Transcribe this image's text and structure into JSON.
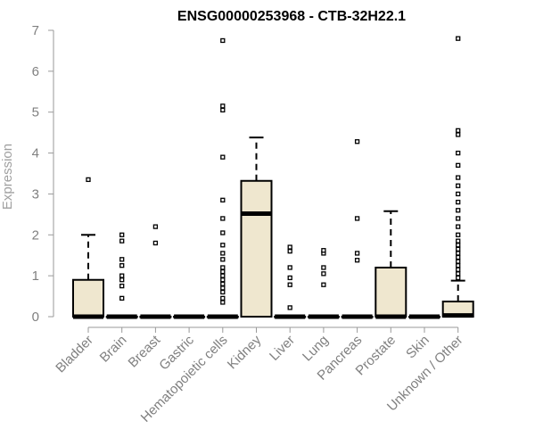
{
  "chart_data": {
    "type": "box",
    "title": "ENSG00000253968 - CTB-32H22.1",
    "xlabel": "",
    "ylabel": "Expression",
    "ylim": [
      0,
      7
    ],
    "yticks": [
      0,
      1,
      2,
      3,
      4,
      5,
      6,
      7
    ],
    "box_fill": "#efe7cf",
    "categories": [
      "Bladder",
      "Brain",
      "Breast",
      "Gastric",
      "Hematopoietic cells",
      "Kidney",
      "Liver",
      "Lung",
      "Pancreas",
      "Prostate",
      "Skin",
      "Unknown / Other"
    ],
    "boxes": [
      {
        "category": "Bladder",
        "q1": 0,
        "median": 0,
        "q3": 0.9,
        "whisker_low": 0,
        "whisker_high": 2.0,
        "outliers": [
          3.35
        ]
      },
      {
        "category": "Brain",
        "q1": 0,
        "median": 0,
        "q3": 0,
        "whisker_low": 0,
        "whisker_high": 0,
        "outliers": [
          0.45,
          0.75,
          0.9,
          1.0,
          1.25,
          1.4,
          1.85,
          2.0
        ]
      },
      {
        "category": "Breast",
        "q1": 0,
        "median": 0,
        "q3": 0,
        "whisker_low": 0,
        "whisker_high": 0,
        "outliers": [
          1.8,
          2.2
        ]
      },
      {
        "category": "Gastric",
        "q1": 0,
        "median": 0,
        "q3": 0,
        "whisker_low": 0,
        "whisker_high": 0,
        "outliers": []
      },
      {
        "category": "Hematopoietic cells",
        "q1": 0,
        "median": 0,
        "q3": 0,
        "whisker_low": 0,
        "whisker_high": 0,
        "outliers": [
          0.35,
          0.45,
          0.6,
          0.7,
          0.8,
          0.9,
          1.0,
          1.1,
          1.2,
          1.4,
          1.55,
          1.75,
          2.05,
          2.4,
          2.85,
          3.9,
          5.05,
          5.15,
          6.75
        ]
      },
      {
        "category": "Kidney",
        "q1": 0,
        "median": 2.52,
        "q3": 3.32,
        "whisker_low": 0,
        "whisker_high": 4.38,
        "outliers": []
      },
      {
        "category": "Liver",
        "q1": 0,
        "median": 0,
        "q3": 0,
        "whisker_low": 0,
        "whisker_high": 0,
        "outliers": [
          0.22,
          0.78,
          0.95,
          1.2,
          1.6,
          1.7
        ]
      },
      {
        "category": "Lung",
        "q1": 0,
        "median": 0,
        "q3": 0,
        "whisker_low": 0,
        "whisker_high": 0,
        "outliers": [
          0.78,
          1.05,
          1.2,
          1.55,
          1.62
        ]
      },
      {
        "category": "Pancreas",
        "q1": 0,
        "median": 0,
        "q3": 0,
        "whisker_low": 0,
        "whisker_high": 0,
        "outliers": [
          1.38,
          1.55,
          2.4,
          4.28
        ]
      },
      {
        "category": "Prostate",
        "q1": 0,
        "median": 0,
        "q3": 1.2,
        "whisker_low": 0,
        "whisker_high": 2.58,
        "outliers": []
      },
      {
        "category": "Skin",
        "q1": 0,
        "median": 0,
        "q3": 0,
        "whisker_low": 0,
        "whisker_high": 0,
        "outliers": []
      },
      {
        "category": "Unknown / Other",
        "q1": 0,
        "median": 0.03,
        "q3": 0.37,
        "whisker_low": 0,
        "whisker_high": 0.88,
        "outliers": [
          0.95,
          1.05,
          1.15,
          1.25,
          1.35,
          1.45,
          1.55,
          1.65,
          1.75,
          1.85,
          2.0,
          2.2,
          2.4,
          2.6,
          2.8,
          3.0,
          3.2,
          3.4,
          3.7,
          4.0,
          4.45,
          4.55,
          6.8
        ]
      }
    ]
  }
}
